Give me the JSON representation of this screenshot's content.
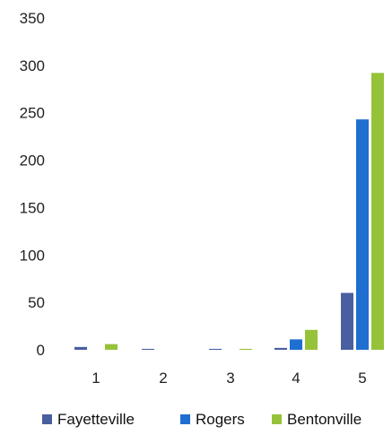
{
  "chart_data": {
    "type": "bar",
    "title": "",
    "xlabel": "",
    "ylabel": "",
    "categories": [
      "1",
      "2",
      "3",
      "4",
      "5"
    ],
    "ylim": [
      0,
      350
    ],
    "yticks": [
      0,
      50,
      100,
      150,
      200,
      250,
      300,
      350
    ],
    "grid": false,
    "legend_position": "bottom",
    "series": [
      {
        "name": "Fayetteville",
        "color": "#4a5fa0",
        "values": [
          3,
          1,
          1,
          2,
          60
        ]
      },
      {
        "name": "Rogers",
        "color": "#1f6fd0",
        "values": [
          0,
          0,
          0,
          11,
          243
        ]
      },
      {
        "name": "Bentonville",
        "color": "#96c23a",
        "values": [
          6,
          0,
          1,
          21,
          292
        ]
      }
    ]
  }
}
